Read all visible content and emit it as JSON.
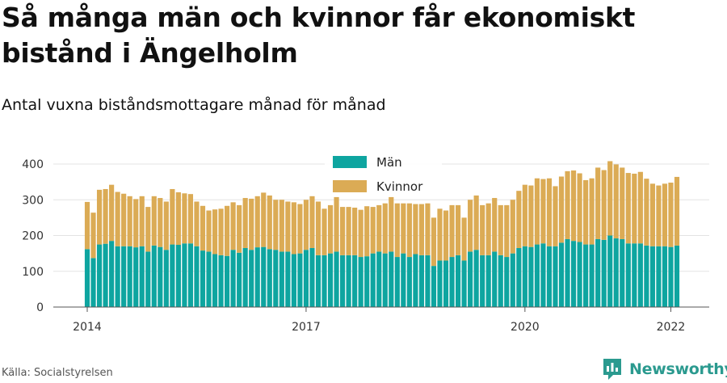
{
  "title": "Så många män och kvinnor får ekonomiskt bistånd i Ängelholm",
  "subtitle": "Antal vuxna biståndsmottagare månad för månad",
  "source": "Källa: Socialstyrelsen",
  "brand": {
    "name": "Newsworthy",
    "icon": "newsworthy-logo-icon"
  },
  "colors": {
    "men": "#0ea5a0",
    "women": "#dbab55",
    "grid": "#e3e3e3",
    "axis": "#555555"
  },
  "chart_data": {
    "type": "bar",
    "stacked": true,
    "x_start": "2014-01",
    "x_ticks": [
      "2014",
      "2017",
      "2020",
      "2022"
    ],
    "y_ticks": [
      "0",
      "100",
      "200",
      "300",
      "400"
    ],
    "ylim": [
      0,
      420
    ],
    "grid": true,
    "legend_position": "top-center",
    "series": [
      {
        "name": "Män",
        "color": "#0ea5a0",
        "values": [
          162,
          137,
          175,
          177,
          185,
          170,
          170,
          170,
          167,
          170,
          155,
          172,
          168,
          160,
          175,
          174,
          178,
          178,
          170,
          158,
          155,
          148,
          145,
          143,
          160,
          152,
          165,
          160,
          167,
          168,
          162,
          160,
          155,
          155,
          148,
          150,
          160,
          165,
          145,
          145,
          150,
          155,
          145,
          145,
          145,
          140,
          142,
          150,
          155,
          150,
          155,
          140,
          150,
          140,
          148,
          145,
          145,
          115,
          130,
          130,
          140,
          145,
          130,
          155,
          160,
          145,
          145,
          155,
          145,
          140,
          150,
          165,
          170,
          168,
          175,
          178,
          170,
          170,
          180,
          190,
          185,
          182,
          175,
          175,
          190,
          188,
          200,
          192,
          190,
          178,
          178,
          178,
          172,
          170,
          170,
          170,
          168,
          172
        ]
      },
      {
        "name": "Kvinnor",
        "values": [
          132,
          127,
          153,
          153,
          157,
          152,
          147,
          140,
          135,
          140,
          125,
          138,
          137,
          135,
          155,
          147,
          140,
          138,
          125,
          125,
          115,
          125,
          130,
          140,
          133,
          133,
          140,
          143,
          143,
          152,
          150,
          140,
          145,
          140,
          145,
          138,
          140,
          145,
          150,
          130,
          135,
          155,
          135,
          135,
          133,
          132,
          140,
          130,
          130,
          140,
          155,
          150,
          140,
          150,
          140,
          143,
          145,
          135,
          145,
          140,
          145,
          140,
          120,
          145,
          152,
          140,
          145,
          150,
          140,
          145,
          150,
          160,
          172,
          172,
          185,
          180,
          190,
          168,
          185,
          190,
          197,
          192,
          180,
          185,
          200,
          195,
          208,
          207,
          200,
          197,
          195,
          200,
          187,
          175,
          170,
          175,
          180,
          192
        ]
      }
    ]
  }
}
